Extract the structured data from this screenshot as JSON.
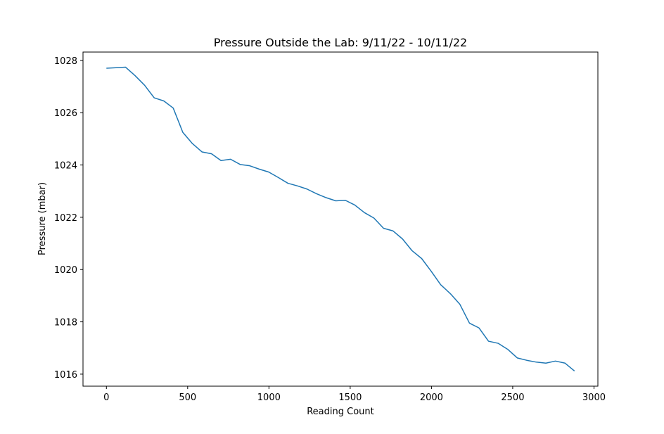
{
  "chart_data": {
    "type": "line",
    "title": "Pressure Outside the Lab: 9/11/22 - 10/11/22",
    "xlabel": "Reading Count",
    "ylabel": "Pressure (mbar)",
    "x": [
      0,
      59,
      118,
      176,
      235,
      294,
      353,
      411,
      470,
      529,
      588,
      647,
      705,
      764,
      823,
      882,
      941,
      999,
      1058,
      1117,
      1176,
      1234,
      1293,
      1352,
      1411,
      1470,
      1528,
      1587,
      1646,
      1705,
      1763,
      1822,
      1881,
      1940,
      1999,
      2057,
      2116,
      2175,
      2234,
      2292,
      2351,
      2410,
      2469,
      2528,
      2586,
      2645,
      2704,
      2763,
      2822,
      2880
    ],
    "series": [
      {
        "name": "Pressure",
        "color": "#1f77b4",
        "values": [
          1027.7,
          1027.72,
          1027.74,
          1027.42,
          1027.05,
          1026.57,
          1026.45,
          1026.18,
          1025.25,
          1024.82,
          1024.5,
          1024.43,
          1024.17,
          1024.22,
          1024.02,
          1023.97,
          1023.84,
          1023.73,
          1023.52,
          1023.3,
          1023.2,
          1023.08,
          1022.9,
          1022.75,
          1022.63,
          1022.65,
          1022.47,
          1022.18,
          1021.97,
          1021.58,
          1021.48,
          1021.17,
          1020.72,
          1020.42,
          1019.93,
          1019.42,
          1019.08,
          1018.67,
          1017.95,
          1017.77,
          1017.26,
          1017.18,
          1016.95,
          1016.62,
          1016.53,
          1016.46,
          1016.42,
          1016.5,
          1016.42,
          1016.12
        ]
      }
    ],
    "xlim": [
      -144,
      3024
    ],
    "ylim": [
      1015.54,
      1028.32
    ],
    "xticks": [
      0,
      500,
      1000,
      1500,
      2000,
      2500,
      3000
    ],
    "yticks": [
      1016,
      1018,
      1020,
      1022,
      1024,
      1026,
      1028
    ]
  }
}
